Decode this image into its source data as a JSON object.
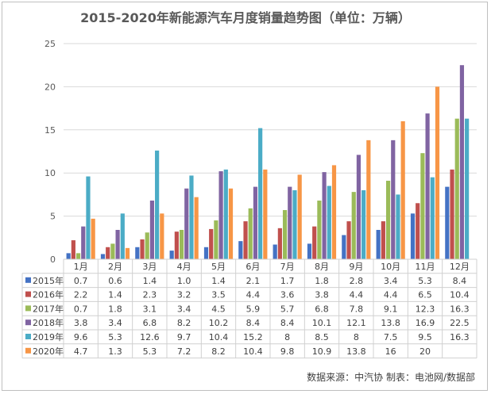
{
  "chart_data": {
    "type": "bar",
    "title": "2015-2020年新能源汽车月度销量趋势图（单位：万辆）",
    "categories": [
      "1月",
      "2月",
      "3月",
      "4月",
      "5月",
      "6月",
      "7月",
      "8月",
      "9月",
      "10月",
      "11月",
      "12月"
    ],
    "ylim": [
      0,
      25
    ],
    "yticks": [
      "0",
      "5",
      "10",
      "15",
      "20",
      "25"
    ],
    "grid": true,
    "legend": "table-left",
    "series": [
      {
        "name": "2015年",
        "color": "#4472C4",
        "values": [
          0.7,
          0.6,
          1.4,
          1.0,
          1.4,
          2.1,
          1.7,
          1.8,
          2.8,
          3.4,
          5.3,
          8.4
        ]
      },
      {
        "name": "2016年",
        "color": "#C0504D",
        "values": [
          2.2,
          1.4,
          2.3,
          3.2,
          3.5,
          4.4,
          3.6,
          3.8,
          4.4,
          4.4,
          6.5,
          10.4
        ]
      },
      {
        "name": "2017年",
        "color": "#9BBB59",
        "values": [
          0.7,
          1.8,
          3.1,
          3.4,
          4.5,
          5.9,
          5.7,
          6.8,
          7.8,
          9.1,
          12.3,
          16.3
        ]
      },
      {
        "name": "2018年",
        "color": "#8064A2",
        "values": [
          3.8,
          3.4,
          6.8,
          8.2,
          10.2,
          8.4,
          8.4,
          10.1,
          12.1,
          13.8,
          16.9,
          22.5
        ]
      },
      {
        "name": "2019年",
        "color": "#4BACC6",
        "values": [
          9.6,
          5.3,
          12.6,
          9.7,
          10.4,
          15.2,
          8,
          8.5,
          8,
          7.5,
          9.5,
          16.3
        ]
      },
      {
        "name": "2020年",
        "color": "#F79646",
        "values": [
          4.7,
          1.3,
          5.3,
          7.2,
          8.2,
          10.4,
          9.8,
          10.9,
          13.8,
          16,
          20,
          null
        ]
      }
    ],
    "value_labels": [
      [
        "0.7",
        "0.6",
        "1.4",
        "1.0",
        "1.4",
        "2.1",
        "1.7",
        "1.8",
        "2.8",
        "3.4",
        "5.3",
        "8.4"
      ],
      [
        "2.2",
        "1.4",
        "2.3",
        "3.2",
        "3.5",
        "4.4",
        "3.6",
        "3.8",
        "4.4",
        "4.4",
        "6.5",
        "10.4"
      ],
      [
        "0.7",
        "1.8",
        "3.1",
        "3.4",
        "4.5",
        "5.9",
        "5.7",
        "6.8",
        "7.8",
        "9.1",
        "12.3",
        "16.3"
      ],
      [
        "3.8",
        "3.4",
        "6.8",
        "8.2",
        "10.2",
        "8.4",
        "8.4",
        "10.1",
        "12.1",
        "13.8",
        "16.9",
        "22.5"
      ],
      [
        "9.6",
        "5.3",
        "12.6",
        "9.7",
        "10.4",
        "15.2",
        "8",
        "8.5",
        "8",
        "7.5",
        "9.5",
        "16.3"
      ],
      [
        "4.7",
        "1.3",
        "5.3",
        "7.2",
        "8.2",
        "10.4",
        "9.8",
        "10.9",
        "13.8",
        "16",
        "20",
        ""
      ]
    ],
    "source": "数据来源：中汽协  制表：电池网/数据部"
  }
}
